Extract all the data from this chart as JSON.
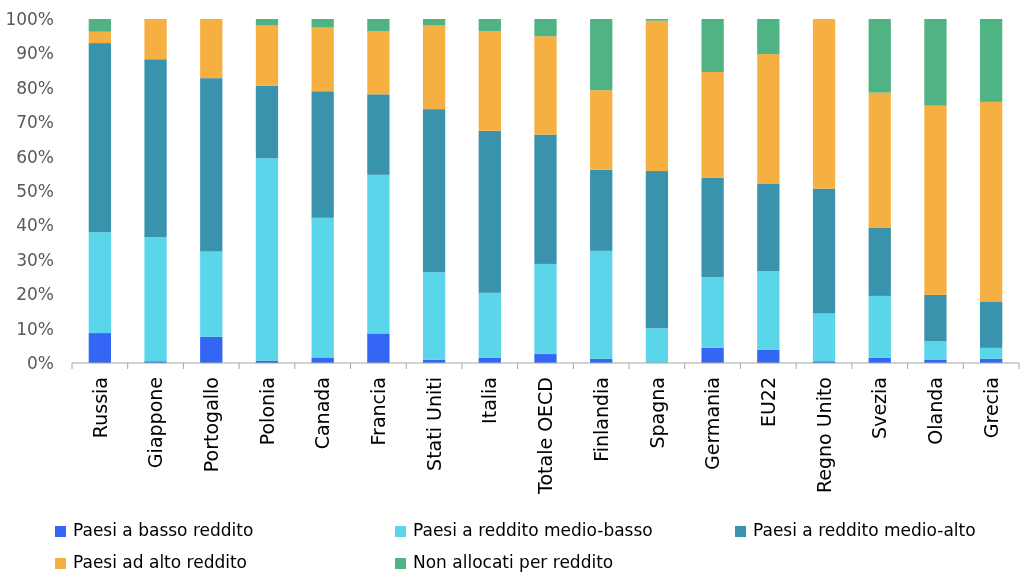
{
  "chart_data": {
    "type": "bar",
    "stacked": true,
    "categories": [
      "Russia",
      "Giappone",
      "Portogallo",
      "Polonia",
      "Canada",
      "Francia",
      "Stati Uniti",
      "Italia",
      "Totale OECD",
      "Finlandia",
      "Spagna",
      "Germania",
      "EU22",
      "Regno Unito",
      "Svezia",
      "Olanda",
      "Grecia"
    ],
    "series": [
      {
        "name": "Paesi a basso reddito",
        "color": "#3366f5",
        "values": [
          8.7,
          0.5,
          7.6,
          0.7,
          1.6,
          8.6,
          0.9,
          1.5,
          2.6,
          1.2,
          0,
          4.4,
          3.9,
          0.5,
          1.5,
          1,
          1.2
        ]
      },
      {
        "name": "Paesi a reddito medio-basso",
        "color": "#5bd5e9",
        "values": [
          29.3,
          36.1,
          24.8,
          58.8,
          40.6,
          46.1,
          25.5,
          18.9,
          26.2,
          31.4,
          10.1,
          20.6,
          22.8,
          13.9,
          18,
          5.3,
          3.2
        ]
      },
      {
        "name": "Paesi a reddito medio-alto",
        "color": "#3a93ad",
        "values": [
          55,
          51.7,
          50.4,
          21.1,
          36.8,
          23.4,
          47.4,
          47.1,
          37.6,
          23.6,
          45.7,
          28.8,
          25.5,
          36.3,
          19.9,
          13.5,
          13.5
        ]
      },
      {
        "name": "Paesi ad alto reddito",
        "color": "#f6b042",
        "values": [
          3.3,
          11.7,
          17.2,
          17.5,
          18.5,
          18.3,
          24.3,
          28.9,
          28.6,
          23.1,
          43.7,
          30.8,
          37.6,
          49.3,
          39.2,
          55,
          58
        ]
      },
      {
        "name": "Non allocati per reddito",
        "color": "#50b383",
        "values": [
          3.7,
          0,
          0,
          1.9,
          2.5,
          3.6,
          1.9,
          3.6,
          5,
          20.7,
          0.5,
          15.4,
          10.2,
          0,
          21.4,
          25.2,
          24.1
        ]
      }
    ],
    "ylim": [
      0,
      100
    ],
    "yticks": [
      {
        "value": 0,
        "label": "0%"
      },
      {
        "value": 10,
        "label": "10%"
      },
      {
        "value": 20,
        "label": "20%"
      },
      {
        "value": 30,
        "label": "30%"
      },
      {
        "value": 40,
        "label": "40%"
      },
      {
        "value": 50,
        "label": "50%"
      },
      {
        "value": 60,
        "label": "60%"
      },
      {
        "value": 70,
        "label": "70%"
      },
      {
        "value": 80,
        "label": "80%"
      },
      {
        "value": 90,
        "label": "90%"
      },
      {
        "value": 100,
        "label": "100%"
      }
    ],
    "grid": false,
    "legend": "bottom"
  }
}
